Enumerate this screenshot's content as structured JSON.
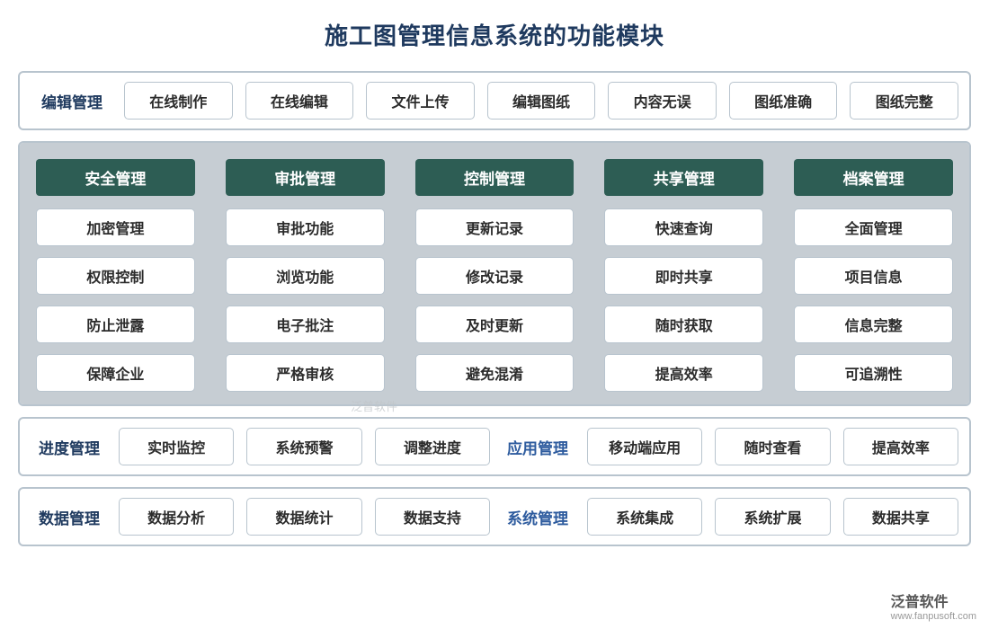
{
  "title": "施工图管理信息系统的功能模块",
  "colors": {
    "title_color": "#1f3a5f",
    "border_color": "#b8c4ce",
    "col_header_bg": "#2d5d54",
    "col_header_text": "#ffffff",
    "columns_bg": "#c6cdd3",
    "pill_bg": "#ffffff",
    "pill_text": "#2b2b2b",
    "label_blue": "#2d5b9e"
  },
  "row_edit": {
    "label": "编辑管理",
    "items": [
      "在线制作",
      "在线编辑",
      "文件上传",
      "编辑图纸",
      "内容无误",
      "图纸准确",
      "图纸完整"
    ]
  },
  "columns": [
    {
      "header": "安全管理",
      "items": [
        "加密管理",
        "权限控制",
        "防止泄露",
        "保障企业"
      ]
    },
    {
      "header": "审批管理",
      "items": [
        "审批功能",
        "浏览功能",
        "电子批注",
        "严格审核"
      ]
    },
    {
      "header": "控制管理",
      "items": [
        "更新记录",
        "修改记录",
        "及时更新",
        "避免混淆"
      ]
    },
    {
      "header": "共享管理",
      "items": [
        "快速查询",
        "即时共享",
        "随时获取",
        "提高效率"
      ]
    },
    {
      "header": "档案管理",
      "items": [
        "全面管理",
        "项目信息",
        "信息完整",
        "可追溯性"
      ]
    }
  ],
  "row_progress": {
    "label_a": "进度管理",
    "items_a": [
      "实时监控",
      "系统预警",
      "调整进度"
    ],
    "label_b": "应用管理",
    "items_b": [
      "移动端应用",
      "随时查看",
      "提高效率"
    ]
  },
  "row_data": {
    "label_a": "数据管理",
    "items_a": [
      "数据分析",
      "数据统计",
      "数据支持"
    ],
    "label_b": "系统管理",
    "items_b": [
      "系统集成",
      "系统扩展",
      "数据共享"
    ]
  },
  "watermark": {
    "mid": "泛普软件",
    "brand": "泛普软件",
    "url": "www.fanpusoft.com"
  }
}
